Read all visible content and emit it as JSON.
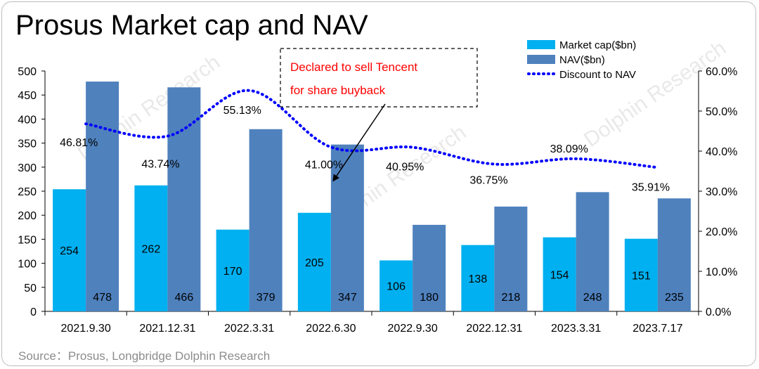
{
  "title": "Prosus Market cap and NAV",
  "source": "Source：Prosus, Longbridge Dolphin Research",
  "watermark": "Dolphin Research",
  "chart_data": {
    "type": "bar",
    "categories": [
      "2021.9.30",
      "2021.12.31",
      "2022.3.31",
      "2022.6.30",
      "2022.9.30",
      "2022.12.31",
      "2023.3.31",
      "2023.7.17"
    ],
    "series": [
      {
        "name": "Market cap($bn)",
        "type": "bar",
        "axis": "left",
        "color": "#00b0f0",
        "values": [
          254,
          262,
          170,
          205,
          106,
          138,
          154,
          151
        ],
        "labels": [
          "254",
          "262",
          "170",
          "205",
          "106",
          "138",
          "154",
          "151"
        ]
      },
      {
        "name": "NAV($bn)",
        "type": "bar",
        "axis": "left",
        "color": "#4f81bd",
        "values": [
          478,
          466,
          379,
          347,
          180,
          218,
          248,
          235
        ],
        "labels": [
          "478",
          "466",
          "379",
          "347",
          "180",
          "218",
          "248",
          "235"
        ]
      },
      {
        "name": "Discount to NAV",
        "type": "line",
        "style": "dotted",
        "axis": "right",
        "color": "#0000ff",
        "values": [
          46.81,
          43.74,
          55.13,
          41.0,
          40.95,
          36.75,
          38.09,
          35.91
        ],
        "labels": [
          "46.81%",
          "43.74%",
          "55.13%",
          "41.00%",
          "40.95%",
          "36.75%",
          "38.09%",
          "35.91%"
        ]
      }
    ],
    "ylim_left": [
      0,
      500
    ],
    "yticks_left": [
      "0",
      "50",
      "100",
      "150",
      "200",
      "250",
      "300",
      "350",
      "400",
      "450",
      "500"
    ],
    "ylim_right": [
      0,
      60
    ],
    "yticks_right": [
      "0.0%",
      "10.0%",
      "20.0%",
      "30.0%",
      "40.0%",
      "50.0%",
      "60.0%"
    ],
    "grid": false,
    "legend_position": "top-right",
    "annotation": {
      "lines": [
        "Declared to sell Tencent",
        "for share buyback"
      ],
      "target_category": "2022.6.30",
      "color": "#ff0000"
    }
  }
}
